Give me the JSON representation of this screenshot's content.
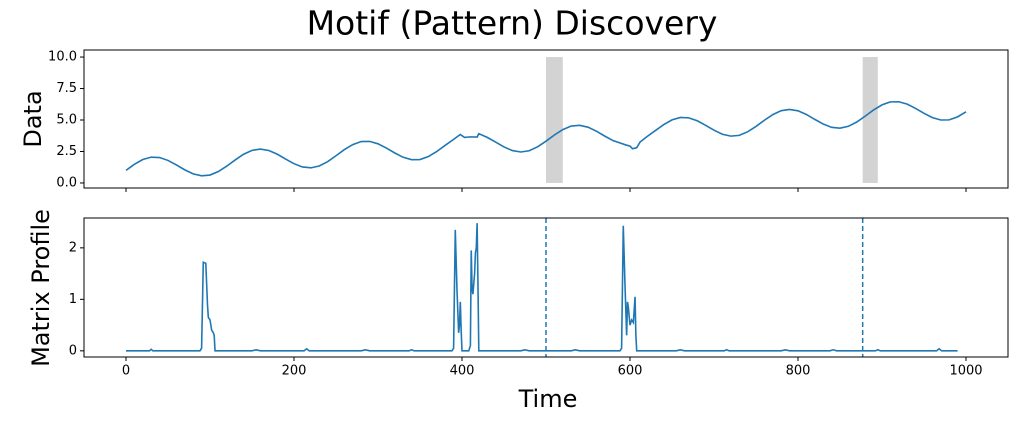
{
  "chart_data": [
    {
      "type": "line",
      "title": "Motif (Pattern) Discovery",
      "ylabel": "Data",
      "color": "#1f77b4",
      "x": [
        0,
        10,
        20,
        30,
        40,
        50,
        60,
        70,
        80,
        90,
        100,
        110,
        120,
        130,
        140,
        150,
        160,
        170,
        180,
        190,
        200,
        210,
        220,
        230,
        240,
        250,
        260,
        270,
        280,
        290,
        300,
        310,
        320,
        330,
        340,
        350,
        360,
        370,
        380,
        390,
        398,
        403,
        410,
        418,
        420,
        430,
        440,
        450,
        460,
        470,
        480,
        490,
        500,
        510,
        520,
        530,
        540,
        550,
        560,
        570,
        580,
        590,
        595,
        600,
        603,
        608,
        612,
        620,
        630,
        640,
        650,
        660,
        670,
        680,
        690,
        700,
        710,
        720,
        730,
        740,
        750,
        760,
        770,
        780,
        790,
        800,
        810,
        820,
        830,
        840,
        850,
        860,
        870,
        880,
        890,
        900,
        910,
        920,
        930,
        940,
        950,
        960,
        970,
        980,
        990,
        1000
      ],
      "values": [
        1.0,
        1.48,
        1.86,
        2.05,
        2.02,
        1.79,
        1.43,
        1.04,
        0.72,
        0.57,
        0.63,
        0.91,
        1.34,
        1.83,
        2.28,
        2.59,
        2.69,
        2.58,
        2.29,
        1.9,
        1.53,
        1.27,
        1.2,
        1.35,
        1.69,
        2.16,
        2.65,
        3.05,
        3.29,
        3.3,
        3.11,
        2.77,
        2.38,
        2.04,
        1.85,
        1.86,
        2.1,
        2.5,
        2.99,
        3.46,
        3.85,
        3.62,
        3.66,
        3.65,
        3.92,
        3.62,
        3.25,
        2.86,
        2.57,
        2.46,
        2.56,
        2.87,
        3.32,
        3.81,
        4.24,
        4.52,
        4.58,
        4.43,
        4.11,
        3.72,
        3.36,
        3.13,
        3.02,
        2.93,
        2.72,
        2.8,
        3.25,
        3.67,
        4.15,
        4.63,
        5.01,
        5.2,
        5.17,
        4.94,
        4.58,
        4.19,
        3.87,
        3.72,
        3.78,
        4.06,
        4.49,
        4.98,
        5.43,
        5.74,
        5.84,
        5.73,
        5.44,
        5.05,
        4.68,
        4.42,
        4.35,
        4.5,
        4.84,
        5.31,
        5.8,
        6.2,
        6.44,
        6.45,
        6.26,
        5.92,
        5.53,
        5.19,
        5.0,
        5.01,
        5.25,
        5.65
      ],
      "regions": [
        {
          "x": [
            500,
            520
          ],
          "y": [
            0,
            10
          ]
        },
        {
          "x": [
            877,
            895
          ],
          "y": [
            0,
            10
          ]
        }
      ],
      "region_color": "#d3d3d3",
      "xlim": [
        -50,
        1050
      ],
      "xticks": [
        0,
        200,
        400,
        600,
        800,
        1000
      ],
      "ylim": [
        -0.4,
        10.56
      ],
      "yticks": [
        {
          "value": 0,
          "label": "0.0"
        },
        2.5,
        {
          "value": 5,
          "label": "5.0"
        },
        7.5,
        {
          "value": 10,
          "label": "10.0"
        }
      ]
    },
    {
      "type": "line",
      "ylabel": "Matrix Profile",
      "xlabel": "Time",
      "color": "#1f77b4",
      "x": [
        0,
        28,
        30,
        32,
        88,
        90,
        92,
        95,
        97,
        98,
        100,
        102,
        104,
        105,
        106,
        150,
        155,
        160,
        212,
        215,
        218,
        280,
        285,
        290,
        337,
        340,
        343,
        388,
        390,
        392,
        394,
        396,
        397,
        398,
        399,
        400,
        408,
        410,
        411,
        412,
        413,
        415,
        416,
        417,
        418,
        419,
        420,
        470,
        475,
        480,
        530,
        535,
        540,
        588,
        590,
        592,
        594,
        596,
        597,
        598,
        600,
        602,
        604,
        606,
        607,
        608,
        655,
        660,
        665,
        712,
        715,
        718,
        780,
        785,
        790,
        838,
        842,
        846,
        892,
        895,
        898,
        965,
        968,
        971,
        990
      ],
      "values": [
        0,
        0,
        0.03,
        0,
        0,
        0.05,
        1.72,
        1.7,
        0.9,
        0.65,
        0.6,
        0.4,
        0.35,
        0.3,
        0,
        0,
        0.02,
        0,
        0,
        0.04,
        0,
        0,
        0.02,
        0,
        0,
        0.02,
        0,
        0,
        0.05,
        2.35,
        1.2,
        0.35,
        0.5,
        0.95,
        0.4,
        0,
        0,
        0.1,
        1.95,
        1.2,
        1.1,
        1.5,
        1.9,
        2.0,
        2.48,
        1.3,
        0,
        0,
        0.02,
        0,
        0,
        0.02,
        0,
        0,
        0.05,
        2.43,
        1.3,
        0.3,
        0.95,
        0.85,
        0.5,
        0.6,
        0.55,
        1.05,
        0.3,
        0,
        0,
        0.02,
        0,
        0,
        0.02,
        0,
        0,
        0.02,
        0,
        0,
        0.02,
        0,
        0,
        0.02,
        0,
        0,
        0.04,
        0,
        0
      ],
      "vlines": [
        500,
        877
      ],
      "xlim": [
        -50,
        1050
      ],
      "xticks": [
        0,
        200,
        400,
        600,
        800,
        1000
      ],
      "ylim": [
        -0.12,
        2.58
      ],
      "yticks": [
        0,
        1,
        2
      ]
    }
  ]
}
